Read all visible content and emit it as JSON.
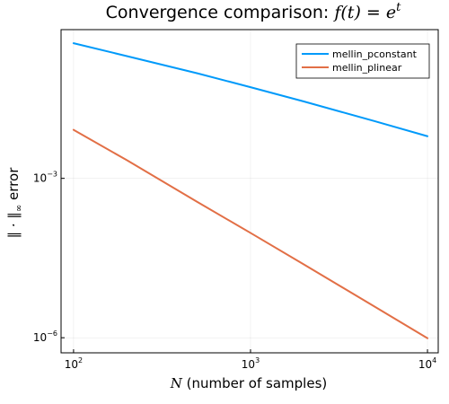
{
  "chart_data": {
    "type": "line",
    "title": {
      "text": "Convergence comparison: ",
      "math": "f(t) = e",
      "math_sup": "t"
    },
    "xlabel": {
      "math": "N",
      "text": " (number of samples)"
    },
    "ylabel": {
      "math": "‖ · ‖",
      "math_sub": "∞",
      "text": "  error"
    },
    "xscale": "log",
    "yscale": "log",
    "xlim": [
      85,
      11500
    ],
    "ylim": [
      5.2e-07,
      0.63
    ],
    "x_ticks": [
      {
        "value": 100,
        "base": "10",
        "exp": "2"
      },
      {
        "value": 1000,
        "base": "10",
        "exp": "3"
      },
      {
        "value": 10000,
        "base": "10",
        "exp": "4"
      }
    ],
    "y_ticks": [
      {
        "value": 0.001,
        "base": "10",
        "exp": "−3"
      },
      {
        "value": 1e-06,
        "base": "10",
        "exp": "−6"
      }
    ],
    "grid": true,
    "legend_position": "top-right",
    "x": [
      100,
      200,
      500,
      1000,
      2000,
      5000,
      10000
    ],
    "series": [
      {
        "name": "mellin_pconstant",
        "color": "#009AFA",
        "values": [
          0.35,
          0.2,
          0.095,
          0.052,
          0.028,
          0.012,
          0.0062
        ]
      },
      {
        "name": "mellin_plinear",
        "color": "#E26F46",
        "values": [
          0.0082,
          0.0022,
          0.00036,
          9.4e-05,
          2.4e-05,
          3.9e-06,
          9.8e-07
        ]
      }
    ]
  }
}
